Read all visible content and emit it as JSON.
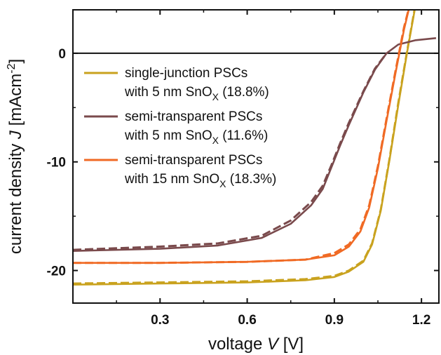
{
  "chart_data": {
    "type": "line",
    "xlabel": {
      "prefix": "voltage ",
      "var": "V",
      "unit": " [V]"
    },
    "ylabel": {
      "prefix": "current density ",
      "var": "J",
      "unit": " [mAcm",
      "sup": "-2",
      "close": "]"
    },
    "xlim": [
      0.0,
      1.26
    ],
    "ylim": [
      -23.0,
      4.0
    ],
    "xticks": [
      0.3,
      0.6,
      0.9,
      1.2
    ],
    "xtick_labels": [
      "0.3",
      "0.6",
      "0.9",
      "1.2"
    ],
    "yticks": [
      0,
      -10,
      -20
    ],
    "ytick_labels": [
      "0",
      "-10",
      "-20"
    ],
    "zero_line": true,
    "legend_position": "upper-left",
    "series": [
      {
        "name": "single-junction PSCs",
        "line2": "with 5 nm SnO",
        "sub": "X",
        "pce": " (18.8%)",
        "color": "#c9a21e",
        "x": [
          0.0,
          0.3,
          0.6,
          0.8,
          0.9,
          0.95,
          1.0,
          1.03,
          1.06,
          1.09,
          1.12,
          1.15,
          1.18
        ],
        "y": [
          -21.3,
          -21.2,
          -21.1,
          -20.9,
          -20.6,
          -20.1,
          -19.2,
          -17.6,
          -14.5,
          -9.8,
          -4.8,
          0.0,
          4.5
        ],
        "x2": [
          0.0,
          0.3,
          0.6,
          0.8,
          0.9,
          0.95,
          1.0,
          1.03,
          1.06,
          1.09,
          1.12,
          1.15,
          1.18
        ],
        "y2": [
          -21.2,
          -21.1,
          -21.0,
          -20.8,
          -20.5,
          -20.0,
          -19.1,
          -17.5,
          -14.4,
          -9.7,
          -4.6,
          0.1,
          4.6
        ]
      },
      {
        "name": "semi-transparent PSCs",
        "line2": "with 5 nm SnO",
        "sub": "X",
        "pce": " (11.6%)",
        "color": "#7a4a4c",
        "x": [
          0.0,
          0.3,
          0.5,
          0.65,
          0.75,
          0.82,
          0.86,
          0.89,
          0.92,
          0.95,
          1.0,
          1.04,
          1.08,
          1.12,
          1.18,
          1.25
        ],
        "y": [
          -18.2,
          -18.0,
          -17.7,
          -17.0,
          -15.7,
          -14.0,
          -12.5,
          -10.5,
          -8.5,
          -6.6,
          -3.6,
          -1.5,
          0.0,
          0.8,
          1.2,
          1.4
        ],
        "x2": [
          0.0,
          0.3,
          0.5,
          0.65,
          0.75,
          0.82,
          0.86,
          0.89,
          0.92,
          0.95,
          1.0,
          1.04,
          1.08
        ],
        "y2": [
          -18.1,
          -17.8,
          -17.5,
          -16.8,
          -15.4,
          -13.7,
          -12.2,
          -10.3,
          -8.3,
          -6.4,
          -3.5,
          -1.4,
          0.0
        ]
      },
      {
        "name": "semi-transparent PSCs",
        "line2": "with 15 nm SnO",
        "sub": "X",
        "pce": " (18.3%)",
        "color": "#f06a24",
        "x": [
          0.0,
          0.3,
          0.6,
          0.8,
          0.9,
          0.95,
          0.99,
          1.02,
          1.05,
          1.08,
          1.11,
          1.14,
          1.165
        ],
        "y": [
          -19.3,
          -19.3,
          -19.2,
          -19.0,
          -18.6,
          -17.8,
          -16.4,
          -14.2,
          -10.6,
          -6.2,
          -1.9,
          2.2,
          5.0
        ],
        "x2": [
          0.0,
          0.3,
          0.6,
          0.8,
          0.9,
          0.95,
          0.99,
          1.02,
          1.05,
          1.08,
          1.11,
          1.14,
          1.165
        ],
        "y2": [
          -19.3,
          -19.3,
          -19.2,
          -19.0,
          -18.4,
          -17.6,
          -16.2,
          -14.0,
          -10.4,
          -6.0,
          -1.7,
          2.4,
          5.0
        ]
      }
    ]
  }
}
